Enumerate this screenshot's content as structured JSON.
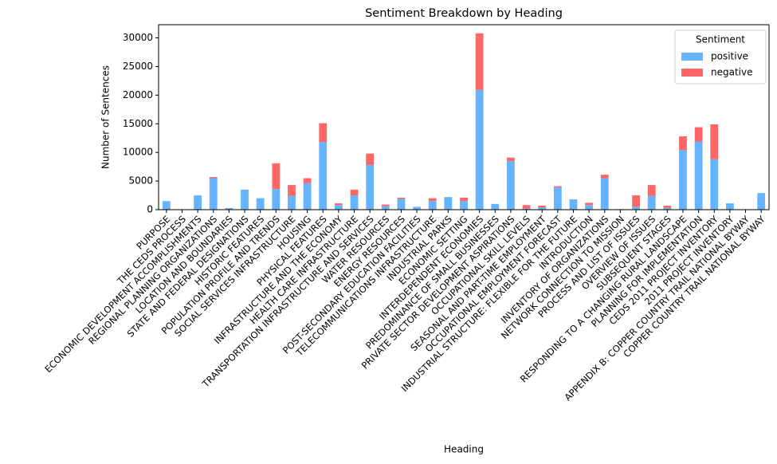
{
  "chart_data": {
    "type": "stacked_bar",
    "title": "Sentiment Breakdown by Heading",
    "xlabel": "Heading",
    "ylabel": "Number of Sentences",
    "categories": [
      "PURPOSE",
      "THE CEDS PROCESS",
      "ECONOMIC DEVELOPMENT ACCOMPLISHMENTS",
      "REGIONAL PLANNING ORGANIZATIONS",
      "LOCATION AND BOUNDARIES",
      "STATE AND FEDERAL DESIGNATIONS",
      "HISTORIC FEATURES",
      "POPULATION PROFILE AND TRENDS",
      "SOCIAL SERVICES INFRASTRUCTURE",
      "HOUSING",
      "PHYSICAL FEATURES",
      "INFRASTRUCTURE AND THE ECONOMY",
      "HEALTH CARE INFRASTRUCTURE",
      "TRANSPORTATION INFRASTRUCTURE AND SERVICES",
      "WATER RESOURCES",
      "ENERGY RESOURCES",
      "POST-SECONDARY EDUCATION FACILITIES",
      "TELECOMMUNICATIONS INFRASTRUCTURE",
      "INDUSTRIAL PARKS",
      "ECONOMIC SETTING",
      "INTERDEPENDENT ECONOMIES",
      "PREDOMINANCE OF SMALL BUSINESSES",
      "PRIVATE SECTOR DEVELOPMENT ASPIRATIONS",
      "OCCUPATIONAL SKILL LEVELS",
      "SEASONAL AND PART-TIME EMPLOYMENT",
      "OCCUPATIONAL EMPLOYMENT FORECAST",
      "INDUSTRIAL STRUCTURE: FLEXIBLE FOR THE FUTURE",
      "INTRODUCTION",
      "INVENTORY OF ORGANIZATIONS",
      "NETWORK CONNECTION TO MISSION",
      "PROCESS AND LIST OF ISSUES",
      "OVERVIEW OF ISSUES",
      "SUBSEQUENT STAGES",
      "RESPONDING TO A CHANGING RURAL LANDSCAPE",
      "PLANNING FOR IMPLEMENTATION",
      "CEDS 2011 PROJECT INVENTORY",
      "2011 PROJECT INVENTORY",
      "APPENDIX B: COPPER COUNTRY TRAIL NATIONAL BYWAY",
      "COPPER COUNTRY TRAIL NATIONAL BYWAY"
    ],
    "series": [
      {
        "name": "positive",
        "color": "#66b3ff",
        "values": [
          1500,
          0,
          2500,
          5500,
          300,
          3500,
          2000,
          3600,
          2400,
          4600,
          11800,
          800,
          2500,
          7800,
          600,
          1900,
          500,
          1500,
          2200,
          1500,
          20900,
          1000,
          8500,
          200,
          400,
          3900,
          1800,
          800,
          5500,
          100,
          500,
          2400,
          300,
          10400,
          11900,
          8800,
          1100,
          0,
          2900
        ]
      },
      {
        "name": "negative",
        "color": "#ff6666",
        "values": [
          0,
          0,
          0,
          200,
          0,
          0,
          0,
          4500,
          1900,
          900,
          3300,
          300,
          1000,
          2000,
          300,
          200,
          0,
          500,
          0,
          600,
          9900,
          0,
          600,
          600,
          300,
          200,
          0,
          400,
          600,
          0,
          2000,
          1900,
          400,
          2400,
          2500,
          6100,
          0,
          0,
          0
        ]
      }
    ],
    "ylim": [
      0,
      32300
    ],
    "yticks": [
      0,
      5000,
      10000,
      15000,
      20000,
      25000,
      30000
    ],
    "legend_title": "Sentiment",
    "legend": "upper right"
  }
}
